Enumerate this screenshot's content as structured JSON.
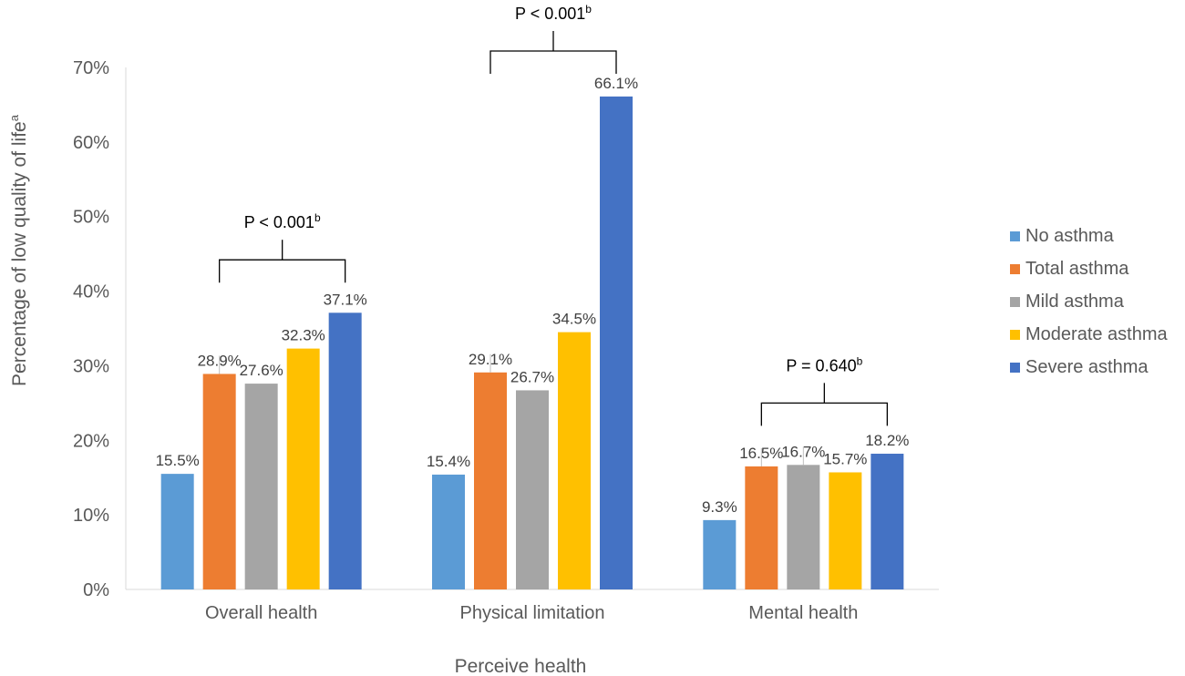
{
  "chart_data": {
    "type": "bar",
    "title": "",
    "xlabel": "Perceive health",
    "ylabel": "Percentage of low quality of life",
    "ylabel_sup": "a",
    "ylim": [
      0,
      70
    ],
    "yticks": [
      "0%",
      "10%",
      "20%",
      "30%",
      "40%",
      "50%",
      "60%",
      "70%"
    ],
    "categories": [
      "Overall health",
      "Physical limitation",
      "Mental health"
    ],
    "series": [
      {
        "name": "No asthma",
        "color": "#5B9BD5",
        "values": [
          15.5,
          15.4,
          9.3
        ],
        "labels": [
          "15.5%",
          "15.4%",
          "9.3%"
        ]
      },
      {
        "name": "Total asthma",
        "color": "#ED7D31",
        "values": [
          28.9,
          29.1,
          16.5
        ],
        "labels": [
          "28.9%",
          "29.1%",
          "16.5%"
        ]
      },
      {
        "name": "Mild asthma",
        "color": "#A5A5A5",
        "values": [
          27.6,
          26.7,
          16.7
        ],
        "labels": [
          "27.6%",
          "26.7%",
          "16.7%"
        ]
      },
      {
        "name": "Moderate asthma",
        "color": "#FFC000",
        "values": [
          32.3,
          34.5,
          15.7
        ],
        "labels": [
          "32.3%",
          "34.5%",
          "15.7%"
        ]
      },
      {
        "name": "Severe asthma",
        "color": "#4472C4",
        "values": [
          37.1,
          66.1,
          18.2
        ],
        "labels": [
          "37.1%",
          "66.1%",
          "18.2%"
        ]
      }
    ],
    "annotations": [
      {
        "category": "Overall health",
        "text": "P < 0.001",
        "sup": "b"
      },
      {
        "category": "Physical limitation",
        "text": "P < 0.001",
        "sup": "b"
      },
      {
        "category": "Mental health",
        "text": "P = 0.640",
        "sup": "b"
      }
    ],
    "legend_position": "right",
    "grid": false
  }
}
